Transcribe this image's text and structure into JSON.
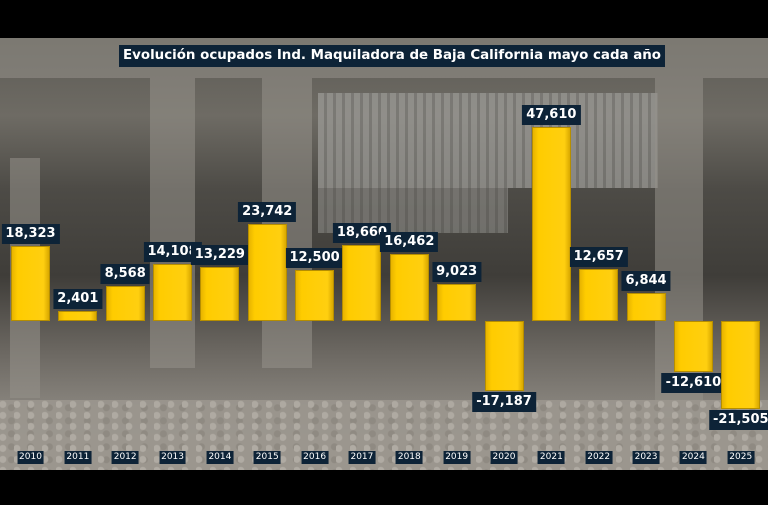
{
  "title": "Evolución ocupados Ind. Maquiladora de Baja California mayo cada año",
  "colors": {
    "bar": "#ffcc00",
    "label_bg": "#0d2337",
    "label_text": "#ffffff"
  },
  "chart_data": {
    "type": "bar",
    "title": "Evolución ocupados Ind. Maquiladora de Baja California mayo cada año",
    "xlabel": "",
    "ylabel": "",
    "categories": [
      "2010",
      "2011",
      "2012",
      "2013",
      "2014",
      "2015",
      "2016",
      "2017",
      "2018",
      "2019",
      "2020",
      "2021",
      "2022",
      "2023",
      "2024",
      "2025"
    ],
    "values": [
      18323,
      2401,
      8568,
      14108,
      13229,
      23742,
      12500,
      18660,
      16462,
      9023,
      -17187,
      47610,
      12657,
      6844,
      -12610,
      -21505
    ],
    "labels": [
      "18,323",
      "2,401",
      "8,568",
      "14,108",
      "13,229",
      "23,742",
      "12,500",
      "18,660",
      "16,462",
      "9,023",
      "-17,187",
      "47,610",
      "12,657",
      "6,844",
      "-12,610",
      "-21,505"
    ],
    "grid": false,
    "legend": "none",
    "ylim": [
      -25000,
      50000
    ]
  }
}
